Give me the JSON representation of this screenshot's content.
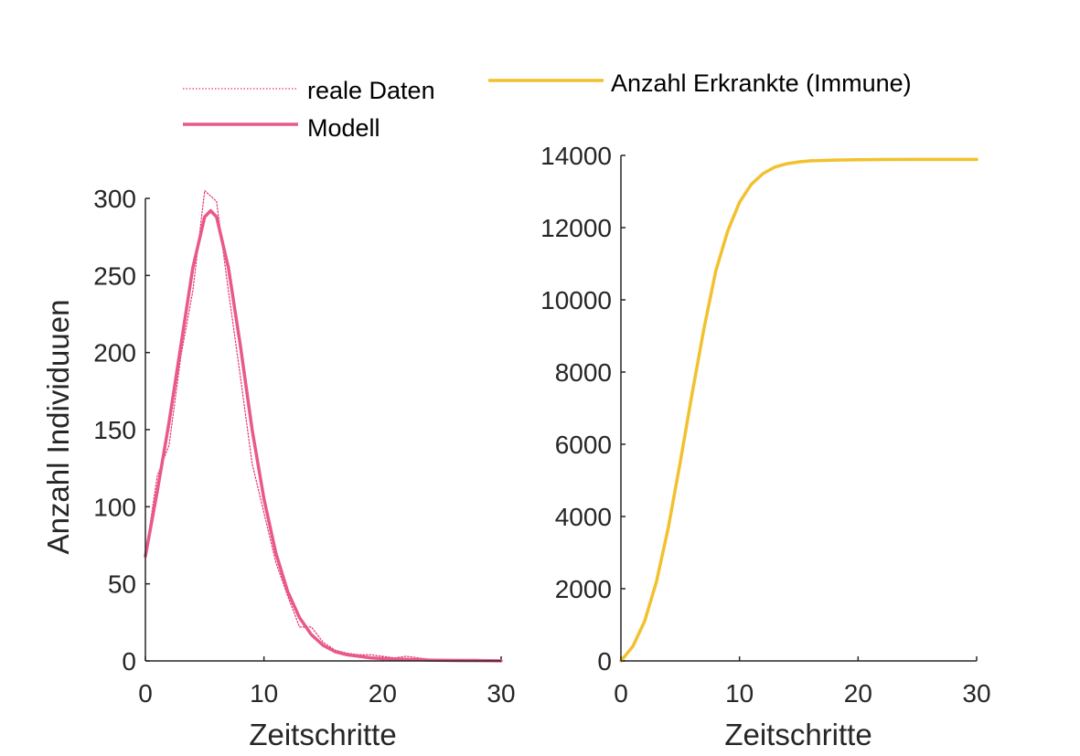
{
  "chart_data": [
    {
      "type": "line",
      "xlabel": "Zeitschritte",
      "ylabel": "Anzahl Individuuen",
      "xlim": [
        0,
        30
      ],
      "ylim": [
        0,
        300
      ],
      "xticks": [
        "0",
        "10",
        "20",
        "30"
      ],
      "yticks": [
        "0",
        "50",
        "100",
        "150",
        "200",
        "250",
        "300"
      ],
      "legend_placement": "top",
      "series": [
        {
          "name": "reale Daten",
          "style": "dotted",
          "color": "#e8306a",
          "x": [
            0,
            1,
            2,
            3,
            4,
            5,
            6,
            7,
            8,
            9,
            10,
            11,
            12,
            13,
            14,
            15,
            16,
            17,
            18,
            19,
            20,
            21,
            22,
            23,
            24,
            25,
            26,
            27,
            28,
            29,
            30
          ],
          "values": [
            68,
            120,
            140,
            198,
            240,
            305,
            298,
            240,
            185,
            128,
            96,
            64,
            42,
            22,
            22,
            12,
            7,
            5,
            4,
            4,
            3,
            2,
            3,
            2,
            1,
            1,
            1,
            1,
            1,
            0,
            0
          ]
        },
        {
          "name": "Modell",
          "style": "solid",
          "color": "#e8598a",
          "x": [
            0,
            1,
            2,
            3,
            4,
            5,
            5.5,
            6,
            7,
            8,
            9,
            10,
            11,
            12,
            13,
            14,
            15,
            16,
            17,
            18,
            19,
            20,
            22,
            24,
            26,
            28,
            30
          ],
          "values": [
            68,
            110,
            155,
            205,
            255,
            288,
            292,
            288,
            255,
            205,
            150,
            105,
            70,
            45,
            28,
            17,
            10,
            6,
            4,
            3,
            2,
            1.5,
            1,
            0.5,
            0.3,
            0.2,
            0.1
          ]
        }
      ]
    },
    {
      "type": "line",
      "xlabel": "Zeitschritte",
      "ylabel": "",
      "xlim": [
        0,
        30
      ],
      "ylim": [
        0,
        14000
      ],
      "xticks": [
        "0",
        "10",
        "20",
        "30"
      ],
      "yticks": [
        "0",
        "2000",
        "4000",
        "6000",
        "8000",
        "10000",
        "12000",
        "14000"
      ],
      "legend_placement": "top",
      "series": [
        {
          "name": "Anzahl Erkrankte (Immune)",
          "style": "solid",
          "color": "#f2c12e",
          "x": [
            0,
            1,
            2,
            3,
            4,
            5,
            6,
            7,
            8,
            9,
            10,
            11,
            12,
            13,
            14,
            15,
            16,
            18,
            20,
            22,
            25,
            30
          ],
          "values": [
            0,
            400,
            1100,
            2200,
            3700,
            5500,
            7400,
            9200,
            10800,
            11900,
            12700,
            13200,
            13500,
            13680,
            13770,
            13820,
            13850,
            13870,
            13880,
            13885,
            13890,
            13890
          ]
        }
      ]
    }
  ]
}
